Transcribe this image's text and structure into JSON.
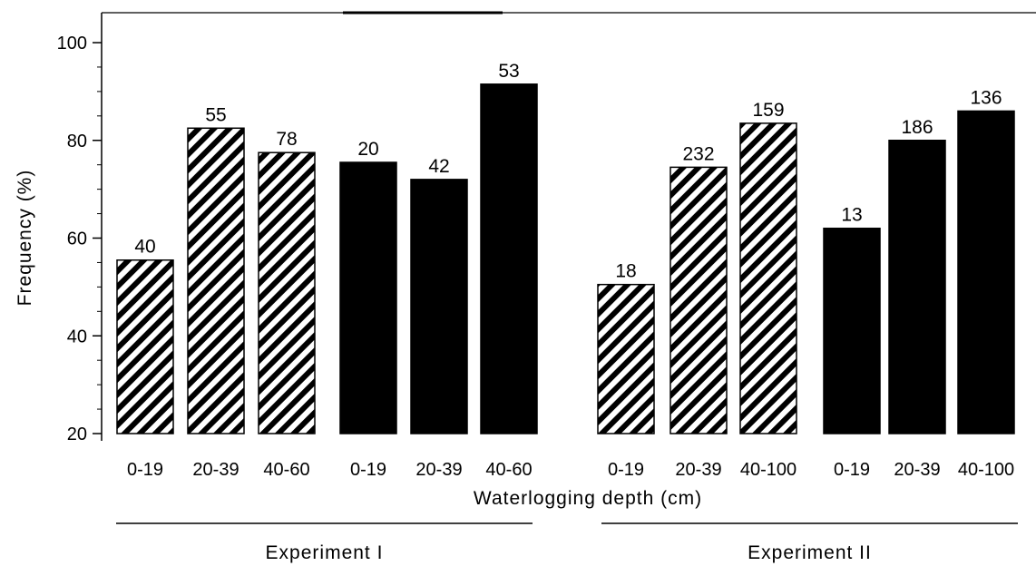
{
  "chart_data": {
    "type": "bar",
    "xlabel": "Waterlogging depth (cm)",
    "ylabel": "Frequency (%)",
    "ylim": [
      20,
      105
    ],
    "yticks": [
      20,
      40,
      60,
      80,
      100
    ],
    "grid": false,
    "legend": "none",
    "colors": {
      "hatched": "#000000",
      "solid": "#000000",
      "background": "#ffffff"
    },
    "groups": [
      {
        "label": "Experiment I",
        "clusters": [
          {
            "pattern": "hatched",
            "bars": [
              {
                "category": "0-19",
                "value": 55.5,
                "label": "40"
              },
              {
                "category": "20-39",
                "value": 82.5,
                "label": "55"
              },
              {
                "category": "40-60",
                "value": 77.5,
                "label": "78"
              }
            ]
          },
          {
            "pattern": "solid",
            "bars": [
              {
                "category": "0-19",
                "value": 75.5,
                "label": "20"
              },
              {
                "category": "20-39",
                "value": 72,
                "label": "42"
              },
              {
                "category": "40-60",
                "value": 91.5,
                "label": "53"
              }
            ]
          }
        ]
      },
      {
        "label": "Experiment II",
        "clusters": [
          {
            "pattern": "hatched",
            "bars": [
              {
                "category": "0-19",
                "value": 50.5,
                "label": "18"
              },
              {
                "category": "20-39",
                "value": 74.5,
                "label": "232"
              },
              {
                "category": "40-100",
                "value": 83.5,
                "label": "159"
              }
            ]
          },
          {
            "pattern": "solid",
            "bars": [
              {
                "category": "0-19",
                "value": 62,
                "label": "13"
              },
              {
                "category": "20-39",
                "value": 80,
                "label": "186"
              },
              {
                "category": "40-100",
                "value": 86,
                "label": "136"
              }
            ]
          }
        ]
      }
    ]
  }
}
